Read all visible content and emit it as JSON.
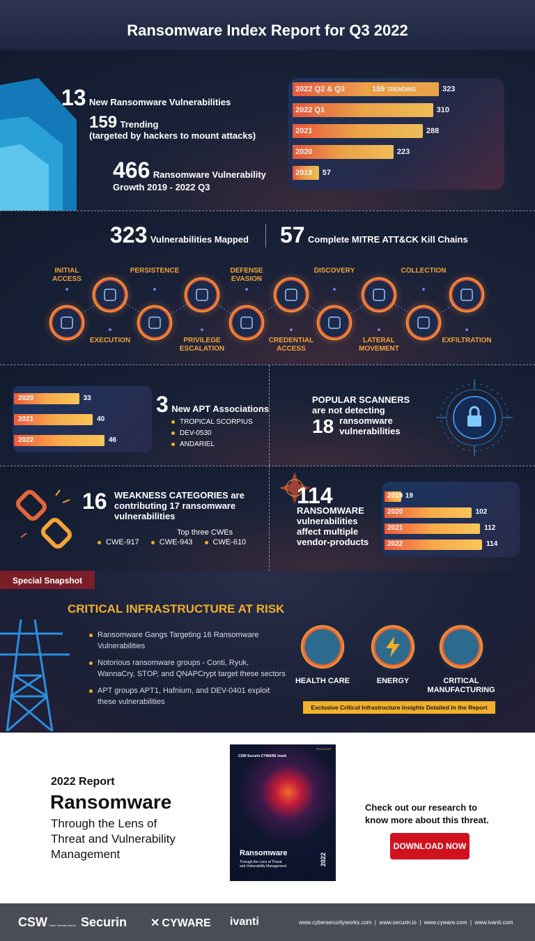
{
  "header": {
    "title": "Ransomware Index Report for Q3 2022"
  },
  "stats": {
    "new_num": "13",
    "new_label": "New Ransomware Vulnerabilities",
    "trending_num": "159",
    "trending_label": "Trending",
    "trending_sub": "(targeted by hackers to mount attacks)",
    "growth_num": "466",
    "growth_label": "Ransomware Vulnerability",
    "growth_sub": "Growth 2019 - 2022 Q3"
  },
  "growth_chart": {
    "bars": [
      {
        "label": "2022 Q2 & Q3",
        "value": "323",
        "fill": 1.0,
        "trending": "159",
        "trending_label": "TRENDING"
      },
      {
        "label": "2022 Q1",
        "value": "310",
        "fill": 0.96
      },
      {
        "label": "2021",
        "value": "288",
        "fill": 0.89
      },
      {
        "label": "2020",
        "value": "223",
        "fill": 0.69
      },
      {
        "label": "2019",
        "value": "57",
        "fill": 0.18
      }
    ]
  },
  "mitre": {
    "mapped_num": "323",
    "mapped_label": "Vulnerabilities Mapped",
    "chains_num": "57",
    "chains_label": "Complete MITRE ATT&CK Kill Chains",
    "stages": [
      {
        "label": "INITIAL\nACCESS",
        "icon": "door-icon"
      },
      {
        "label": "EXECUTION",
        "icon": "gear-icon"
      },
      {
        "label": "PERSISTENCE",
        "icon": "cycle-icon"
      },
      {
        "label": "PRIVILEGE\nESCALATION",
        "icon": "chart-up-icon"
      },
      {
        "label": "DEFENSE\nEVASION",
        "icon": "shield-icon"
      },
      {
        "label": "CREDENTIAL\nACCESS",
        "icon": "key-icon"
      },
      {
        "label": "DISCOVERY",
        "icon": "magnifier-icon"
      },
      {
        "label": "LATERAL\nMOVEMENT",
        "icon": "network-icon"
      },
      {
        "label": "COLLECTION",
        "icon": "folder-icon"
      },
      {
        "label": "EXFILTRATION",
        "icon": "radar-icon"
      }
    ]
  },
  "apt": {
    "bars": [
      {
        "label": "2020",
        "value": "33",
        "fill": 0.72
      },
      {
        "label": "2021",
        "value": "40",
        "fill": 0.87
      },
      {
        "label": "2022",
        "value": "46",
        "fill": 1.0
      }
    ],
    "num": "3",
    "label": "New APT Associations",
    "items": [
      "TROPICAL SCORPIUS",
      "DEV-0530",
      "ANDARIEL"
    ]
  },
  "scanners": {
    "line1": "POPULAR SCANNERS",
    "line2": "are not detecting",
    "num": "18",
    "label1": "ransomware",
    "label2": "vulnerabilities"
  },
  "weakness": {
    "num": "16",
    "line1": "WEAKNESS CATEGORIES are",
    "line2": "contributing 17 ransomware",
    "line3": "vulnerabilities",
    "top_label": "Top three CWEs",
    "cwes": [
      "CWE-917",
      "CWE-943",
      "CWE-610"
    ]
  },
  "vendor": {
    "num": "114",
    "line1": "RANSOMWARE",
    "line2": "vulnerabilities",
    "line3": "affect multiple",
    "line4": "vendor-products",
    "bars": [
      {
        "label": "2019",
        "value": "19",
        "fill": 0.17
      },
      {
        "label": "2020",
        "value": "102",
        "fill": 0.89
      },
      {
        "label": "2021",
        "value": "112",
        "fill": 0.98
      },
      {
        "label": "2022",
        "value": "114",
        "fill": 1.0
      }
    ]
  },
  "snapshot": {
    "tag": "Special Snapshot",
    "title": "CRITICAL INFRASTRUCTURE AT RISK",
    "items": [
      [
        "Ransomware Gangs Targeting 16 Ransomware",
        "Vulnerabilities"
      ],
      [
        "Notorious ransomware groups - Conti, Ryuk,",
        "WannaCry, STOP, and QNAPCrypt target these sectors"
      ],
      [
        "APT groups APT1, Hafnium, and DEV-0401 exploit",
        "these vulnerabilities"
      ]
    ],
    "sectors": [
      {
        "label": "HEALTH CARE"
      },
      {
        "label": "ENERGY"
      },
      {
        "label": "CRITICAL\nMANUFACTURING"
      }
    ],
    "cta": "Exclusive Critical Infrastructure Insights Detailed In the Report"
  },
  "report": {
    "year": "2022 Report",
    "title": "Ransomware",
    "sub1": "Through the Lens of",
    "sub2": "Threat and Vulnerability",
    "sub3": "Management",
    "cover_title": "Ransomware",
    "cover_sub1": "Through the Lens of Threat",
    "cover_sub2": "and Vulnerability Management",
    "cover_year": "2022",
    "cover_brands": "CSW  Securin  CYWARE  ivanti",
    "cover_tag": "SPOTLIGHT",
    "cta1": "Check out our research to",
    "cta2": "know more about this threat.",
    "button": "DOWNLOAD NOW"
  },
  "footer": {
    "brands": [
      "CSW",
      "Securin",
      "CYWARE",
      "ivanti"
    ],
    "csw_sub": "Cyber Security Works",
    "links": "www.cybersecurityworks.com  |  www.securin.io  |  www.cyware.com  |  www.ivanti.com"
  },
  "colors": {
    "accent_orange": "#f2a33a",
    "bar_start": "#f05a3c",
    "bar_end": "#f8c65a",
    "cta_red": "#d0121f",
    "tag_red": "#7a1f2a",
    "yellow": "#f2b02a"
  }
}
